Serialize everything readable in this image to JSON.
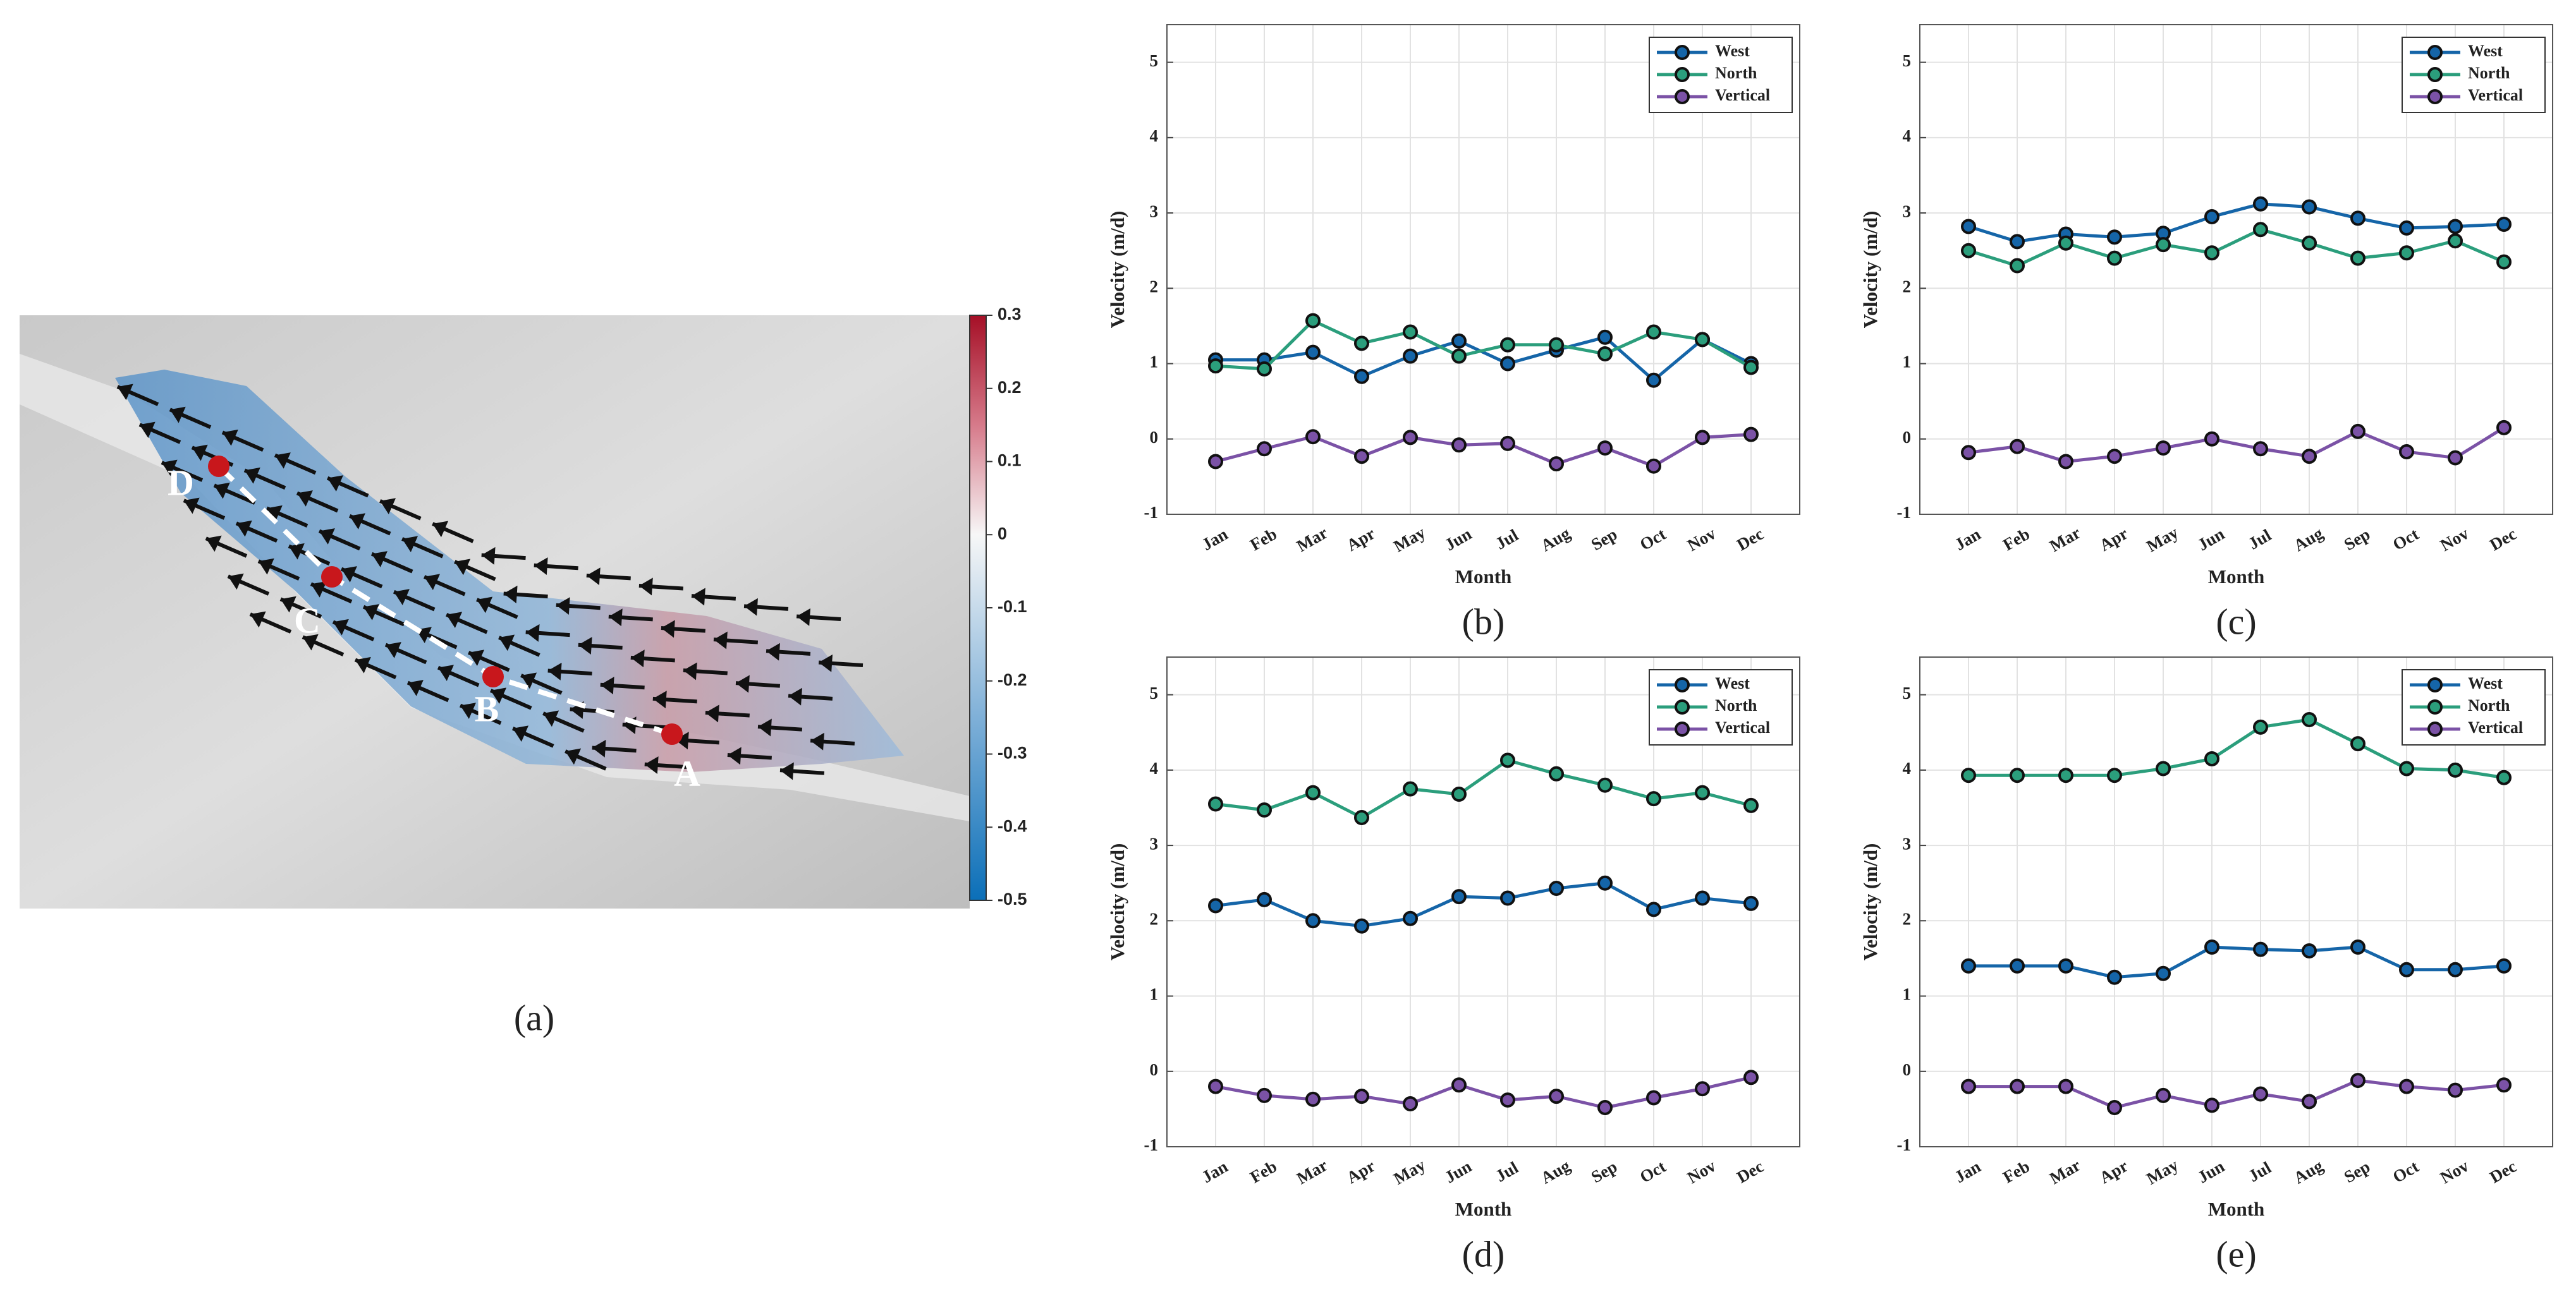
{
  "map_panel": {
    "caption": "(a)",
    "points": [
      "A",
      "B",
      "C",
      "D"
    ],
    "colorbar": {
      "lim": [
        -0.5,
        0.3
      ],
      "ticks": [
        0.3,
        0.2,
        0.1,
        0,
        -0.1,
        -0.2,
        -0.3,
        -0.4,
        -0.5
      ]
    }
  },
  "chart_data": [
    {
      "type": "line",
      "caption": "(b)",
      "xlabel": "Month",
      "ylabel": "Velocity (m/d)",
      "categories": [
        "Jan",
        "Feb",
        "Mar",
        "Apr",
        "May",
        "Jun",
        "Jul",
        "Aug",
        "Sep",
        "Oct",
        "Nov",
        "Dec"
      ],
      "ylim": [
        -1,
        5.5
      ],
      "yticks": [
        -1,
        0,
        1,
        2,
        3,
        4,
        5
      ],
      "grid": true,
      "legend": "upper right",
      "series": [
        {
          "name": "West",
          "color": "#1565a8",
          "values": [
            1.05,
            1.05,
            1.15,
            0.83,
            1.1,
            1.3,
            1.0,
            1.18,
            1.35,
            0.78,
            1.32,
            1.0
          ]
        },
        {
          "name": "North",
          "color": "#2b9e7c",
          "values": [
            0.97,
            0.93,
            1.57,
            1.27,
            1.42,
            1.1,
            1.25,
            1.25,
            1.13,
            1.42,
            1.32,
            0.95
          ]
        },
        {
          "name": "Vertical",
          "color": "#7b52a6",
          "values": [
            -0.3,
            -0.13,
            0.03,
            -0.23,
            0.02,
            -0.08,
            -0.06,
            -0.33,
            -0.12,
            -0.36,
            0.02,
            0.06
          ]
        }
      ]
    },
    {
      "type": "line",
      "caption": "(c)",
      "xlabel": "Month",
      "ylabel": "Velocity (m/d)",
      "categories": [
        "Jan",
        "Feb",
        "Mar",
        "Apr",
        "May",
        "Jun",
        "Jul",
        "Aug",
        "Sep",
        "Oct",
        "Nov",
        "Dec"
      ],
      "ylim": [
        -1,
        5.5
      ],
      "yticks": [
        -1,
        0,
        1,
        2,
        3,
        4,
        5
      ],
      "grid": true,
      "legend": "upper right",
      "series": [
        {
          "name": "West",
          "color": "#1565a8",
          "values": [
            2.82,
            2.62,
            2.72,
            2.68,
            2.73,
            2.95,
            3.12,
            3.08,
            2.93,
            2.8,
            2.82,
            2.85
          ]
        },
        {
          "name": "North",
          "color": "#2b9e7c",
          "values": [
            2.5,
            2.3,
            2.6,
            2.4,
            2.58,
            2.47,
            2.78,
            2.6,
            2.4,
            2.47,
            2.63,
            2.35
          ]
        },
        {
          "name": "Vertical",
          "color": "#7b52a6",
          "values": [
            -0.18,
            -0.1,
            -0.3,
            -0.23,
            -0.12,
            0.0,
            -0.13,
            -0.23,
            0.1,
            -0.17,
            -0.25,
            0.15
          ]
        }
      ]
    },
    {
      "type": "line",
      "caption": "(d)",
      "xlabel": "Month",
      "ylabel": "Velocity (m/d)",
      "categories": [
        "Jan",
        "Feb",
        "Mar",
        "Apr",
        "May",
        "Jun",
        "Jul",
        "Aug",
        "Sep",
        "Oct",
        "Nov",
        "Dec"
      ],
      "ylim": [
        -1,
        5.5
      ],
      "yticks": [
        -1,
        0,
        1,
        2,
        3,
        4,
        5
      ],
      "grid": true,
      "legend": "upper right",
      "series": [
        {
          "name": "West",
          "color": "#1565a8",
          "values": [
            2.2,
            2.28,
            2.0,
            1.93,
            2.03,
            2.32,
            2.3,
            2.43,
            2.5,
            2.15,
            2.3,
            2.23
          ]
        },
        {
          "name": "North",
          "color": "#2b9e7c",
          "values": [
            3.55,
            3.47,
            3.7,
            3.37,
            3.75,
            3.68,
            4.13,
            3.95,
            3.8,
            3.62,
            3.7,
            3.53
          ]
        },
        {
          "name": "Vertical",
          "color": "#7b52a6",
          "values": [
            -0.2,
            -0.32,
            -0.37,
            -0.33,
            -0.43,
            -0.18,
            -0.38,
            -0.33,
            -0.48,
            -0.35,
            -0.23,
            -0.08
          ]
        }
      ]
    },
    {
      "type": "line",
      "caption": "(e)",
      "xlabel": "Month",
      "ylabel": "Velocity (m/d)",
      "categories": [
        "Jan",
        "Feb",
        "Mar",
        "Apr",
        "May",
        "Jun",
        "Jul",
        "Aug",
        "Sep",
        "Oct",
        "Nov",
        "Dec"
      ],
      "ylim": [
        -1,
        5.5
      ],
      "yticks": [
        -1,
        0,
        1,
        2,
        3,
        4,
        5
      ],
      "grid": true,
      "legend": "upper right",
      "series": [
        {
          "name": "West",
          "color": "#1565a8",
          "values": [
            1.4,
            1.4,
            1.4,
            1.25,
            1.3,
            1.65,
            1.62,
            1.6,
            1.65,
            1.35,
            1.35,
            1.4
          ]
        },
        {
          "name": "North",
          "color": "#2b9e7c",
          "values": [
            3.93,
            3.93,
            3.93,
            3.93,
            4.02,
            4.15,
            4.57,
            4.67,
            4.35,
            4.02,
            4.0,
            3.9
          ]
        },
        {
          "name": "Vertical",
          "color": "#7b52a6",
          "values": [
            -0.2,
            -0.2,
            -0.2,
            -0.48,
            -0.32,
            -0.45,
            -0.3,
            -0.4,
            -0.12,
            -0.2,
            -0.25,
            -0.18
          ]
        }
      ]
    }
  ]
}
